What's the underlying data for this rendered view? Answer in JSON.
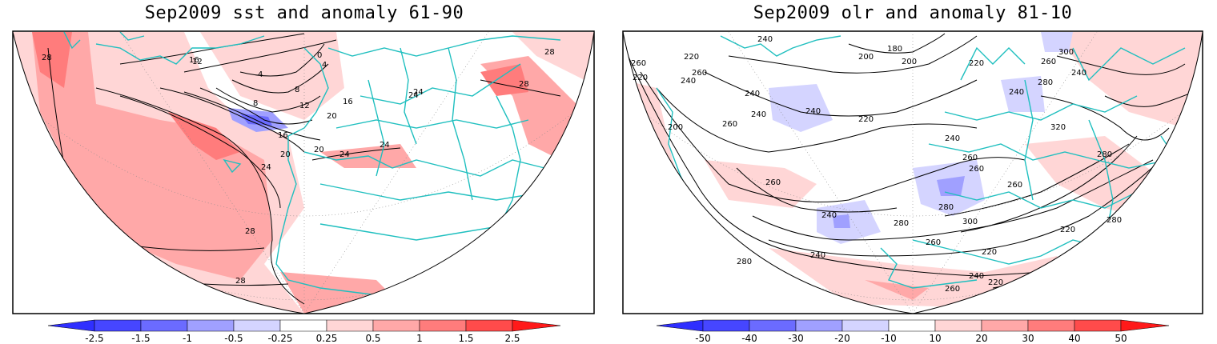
{
  "panels": [
    {
      "title": "Sep2009 sst and anomaly 61-90",
      "colorbar": {
        "labels": [
          "-2.5",
          "-1.5",
          "-1",
          "-0.5",
          "-0.25",
          "0.25",
          "0.5",
          "1",
          "1.5",
          "2.5"
        ],
        "colors": [
          "#2f2fff",
          "#6b6bff",
          "#a0a0ff",
          "#d4d4ff",
          "#ffffff",
          "#ffd6d6",
          "#ffa8a8",
          "#ff7c7c",
          "#ff4b4b",
          "#ff1a1a"
        ]
      },
      "contour_labels": [
        "28",
        "24",
        "20",
        "16",
        "12",
        "8",
        "4",
        "0",
        "4",
        "8",
        "12",
        "16",
        "20",
        "24",
        "28",
        "24",
        "20",
        "16",
        "28",
        "28",
        "28",
        "24",
        "24"
      ]
    },
    {
      "title": "Sep2009 olr and anomaly 81-10",
      "colorbar": {
        "labels": [
          "-50",
          "-40",
          "-30",
          "-20",
          "-10",
          "10",
          "20",
          "30",
          "40",
          "50"
        ],
        "colors": [
          "#2f2fff",
          "#6b6bff",
          "#a0a0ff",
          "#d4d4ff",
          "#ffffff",
          "#ffd6d6",
          "#ffa8a8",
          "#ff7c7c",
          "#ff4b4b",
          "#ff1a1a"
        ]
      },
      "contour_labels": [
        "240",
        "220",
        "260",
        "220",
        "240",
        "200",
        "180",
        "200",
        "260",
        "220",
        "240",
        "260",
        "300",
        "240",
        "280",
        "240",
        "200",
        "240",
        "260",
        "240",
        "220",
        "260",
        "280",
        "260",
        "320",
        "240",
        "260",
        "280",
        "300",
        "280",
        "260",
        "240",
        "220",
        "280",
        "260",
        "220",
        "240",
        "280",
        "240",
        "260",
        "220"
      ]
    }
  ],
  "colors": {
    "coast": "#1fbfbf",
    "frame": "#000000",
    "neg_strong": "#2f2fff",
    "pos_strong": "#ff1a1a"
  }
}
